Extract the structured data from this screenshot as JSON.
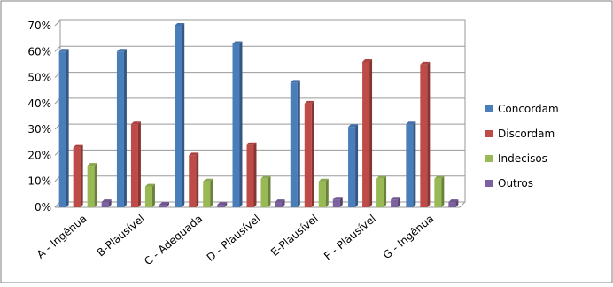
{
  "chart_data": {
    "type": "bar",
    "categories": [
      "A - Ingênua",
      "B-Plausível",
      "C - Adequada",
      "D - Plausível",
      "E-Plausível",
      "F - Plausível",
      "G - Ingênua"
    ],
    "series": [
      {
        "name": "Concordam",
        "color": "#4a7ebb",
        "values": [
          60,
          60,
          70,
          63,
          48,
          31,
          32
        ]
      },
      {
        "name": "Discordam",
        "color": "#be4b48",
        "values": [
          23,
          32,
          20,
          24,
          40,
          56,
          55
        ]
      },
      {
        "name": "Indecisos",
        "color": "#98b954",
        "values": [
          16,
          8,
          10,
          11,
          10,
          11,
          11
        ]
      },
      {
        "name": "Outros",
        "color": "#7d60a0",
        "values": [
          2,
          1,
          1,
          2,
          3,
          3,
          2
        ]
      }
    ],
    "ylim": [
      0,
      70
    ],
    "yticks": [
      {
        "value": 0,
        "label": "0%"
      },
      {
        "value": 10,
        "label": "10%"
      },
      {
        "value": 20,
        "label": "20%"
      },
      {
        "value": 30,
        "label": "30%"
      },
      {
        "value": 40,
        "label": "40%"
      },
      {
        "value": 50,
        "label": "50%"
      },
      {
        "value": 60,
        "label": "60%"
      },
      {
        "value": 70,
        "label": "70%"
      }
    ],
    "grid": true,
    "legend": "right"
  }
}
